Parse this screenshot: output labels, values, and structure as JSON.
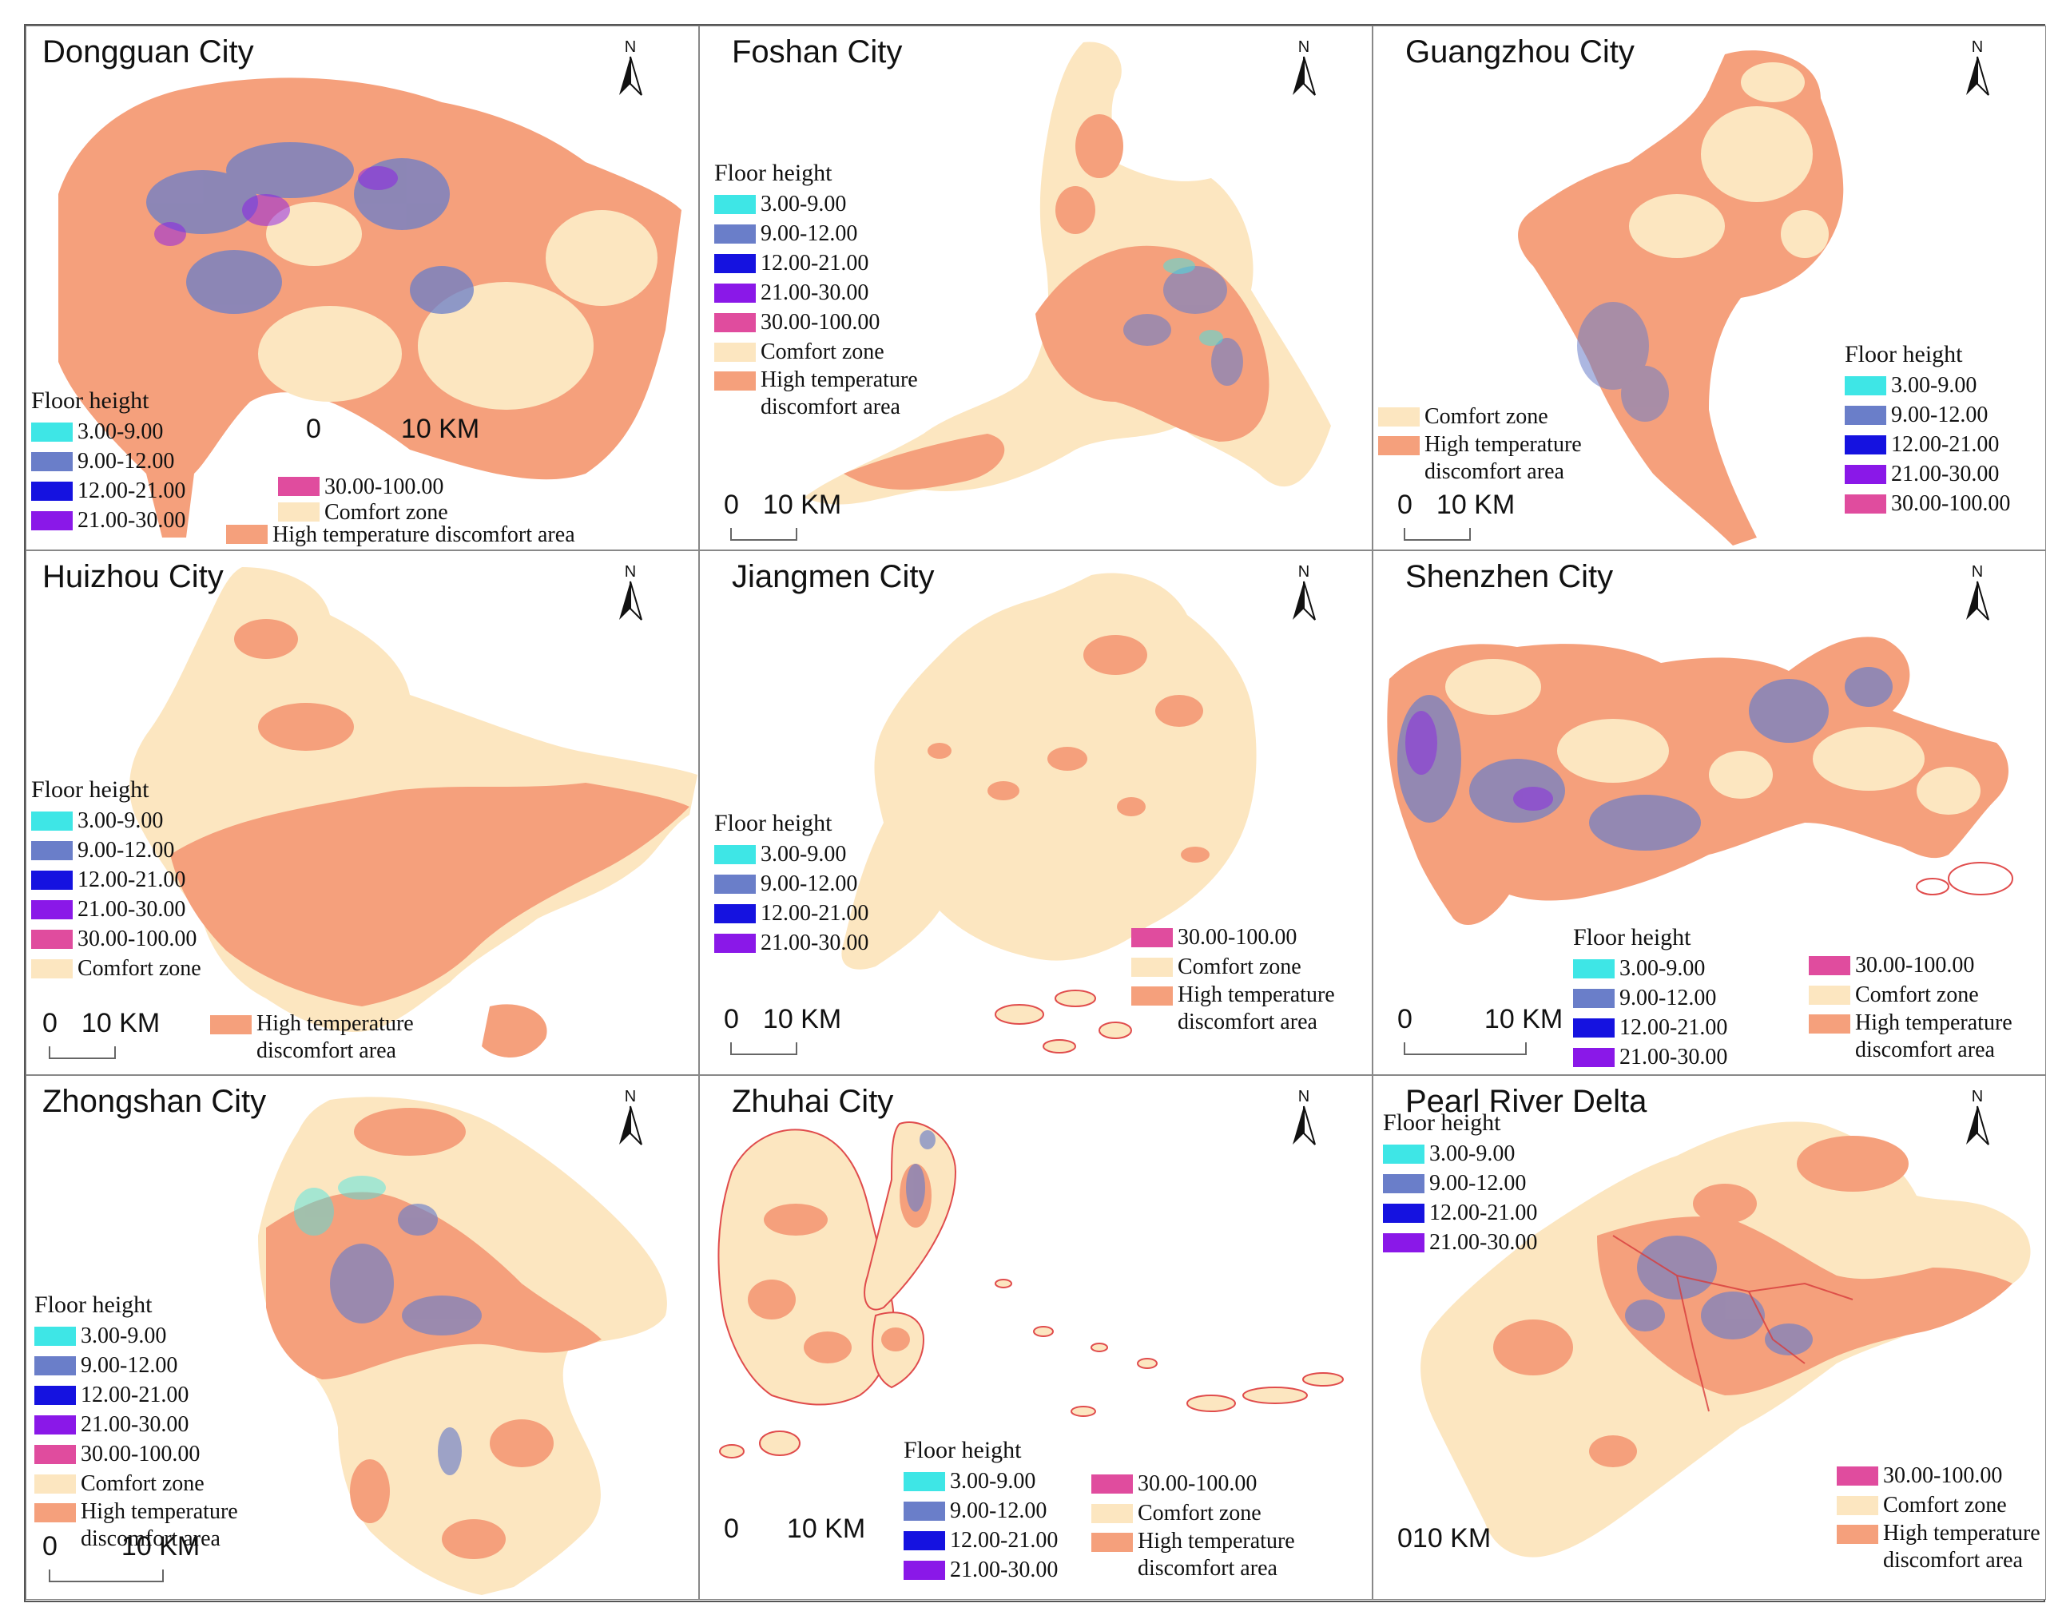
{
  "colors": {
    "c1": "#3EE6E6",
    "c2": "#6A7EC9",
    "c3": "#1512E0",
    "c4": "#8A18E8",
    "c5": "#E04C9E",
    "comfort": "#FCE6C0",
    "hot": "#F5A07C"
  },
  "legend_labels": {
    "floor_height": "Floor height",
    "r1": "3.00-9.00",
    "r2": "9.00-12.00",
    "r3": "12.00-21.00",
    "r4": "21.00-30.00",
    "r5": "30.00-100.00",
    "comfort": "Comfort zone",
    "hot_1": "High temperature",
    "hot_2": "discomfort area",
    "hot_full": "High temperature discomfort area"
  },
  "north_label": "N",
  "panels": [
    {
      "title": "Dongguan City",
      "scale_zero": "0",
      "scale_text": "10 KM"
    },
    {
      "title": "Foshan City",
      "scale_zero": "0",
      "scale_text": "10 KM"
    },
    {
      "title": "Guangzhou City",
      "scale_zero": "0",
      "scale_text": "10 KM"
    },
    {
      "title": "Huizhou City",
      "scale_zero": "0",
      "scale_text": "10 KM"
    },
    {
      "title": "Jiangmen City",
      "scale_zero": "0",
      "scale_text": "10 KM"
    },
    {
      "title": "Shenzhen City",
      "scale_zero": "0",
      "scale_text": "10 KM"
    },
    {
      "title": "Zhongshan City",
      "scale_zero": "0",
      "scale_text": "10 KM"
    },
    {
      "title": "Zhuhai City",
      "scale_zero": "0",
      "scale_text": "10 KM"
    },
    {
      "title": "Pearl River Delta",
      "scale_zero": "0",
      "scale_text": "10 KM"
    }
  ]
}
